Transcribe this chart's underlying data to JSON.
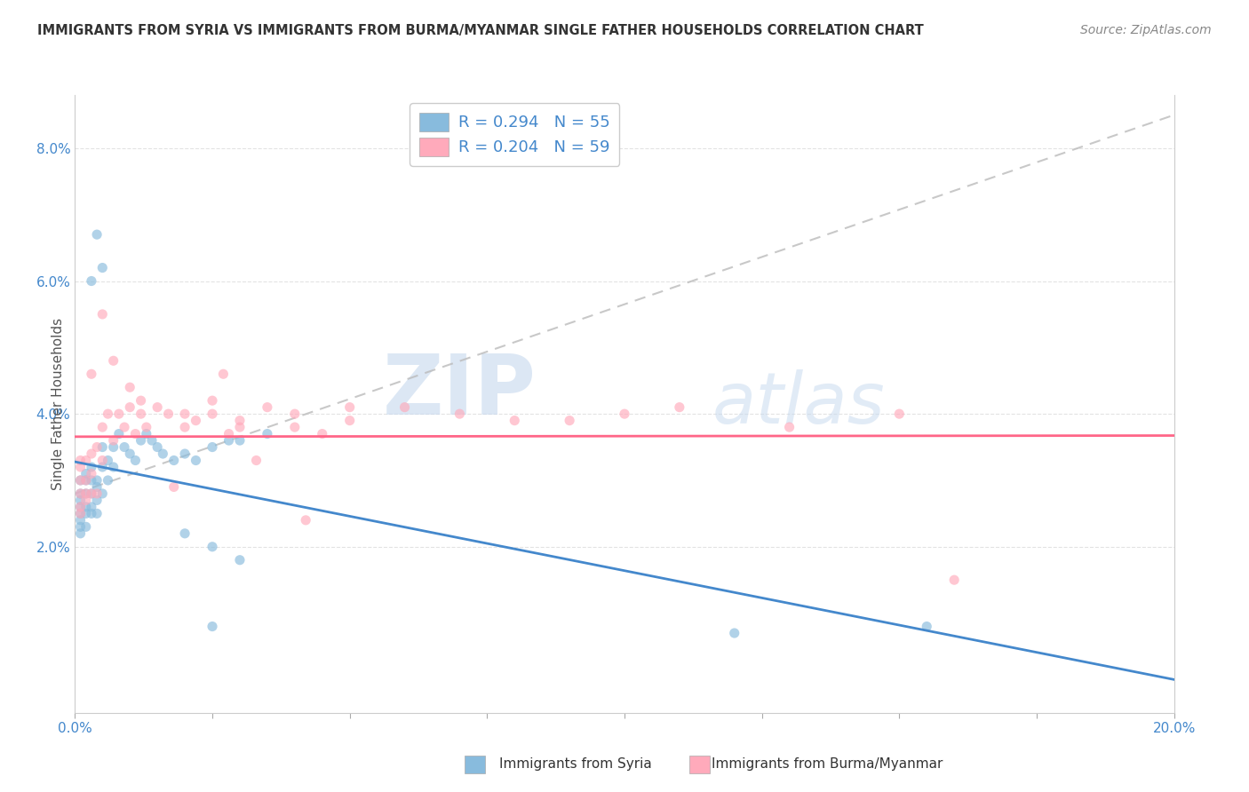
{
  "title": "IMMIGRANTS FROM SYRIA VS IMMIGRANTS FROM BURMA/MYANMAR SINGLE FATHER HOUSEHOLDS CORRELATION CHART",
  "source": "Source: ZipAtlas.com",
  "ylabel": "Single Father Households",
  "legend_syria": "R = 0.294   N = 55",
  "legend_burma": "R = 0.204   N = 59",
  "legend_label_syria": "Immigrants from Syria",
  "legend_label_burma": "Immigrants from Burma/Myanmar",
  "xlim": [
    0,
    0.2
  ],
  "ylim": [
    -0.005,
    0.088
  ],
  "yticks": [
    0.02,
    0.04,
    0.06,
    0.08
  ],
  "ytick_labels": [
    "2.0%",
    "4.0%",
    "6.0%",
    "8.0%"
  ],
  "color_syria": "#88bbdd",
  "color_burma": "#ffaabb",
  "color_syria_line": "#4488cc",
  "color_burma_line": "#ff6688",
  "color_dashed": "#bbbbbb",
  "watermark_zip": "ZIP",
  "watermark_atlas": "atlas",
  "background_color": "#ffffff",
  "grid_color": "#dddddd",
  "syria_x": [
    0.001,
    0.001,
    0.001,
    0.001,
    0.001,
    0.001,
    0.001,
    0.001,
    0.002,
    0.002,
    0.002,
    0.002,
    0.002,
    0.002,
    0.003,
    0.003,
    0.003,
    0.003,
    0.003,
    0.004,
    0.004,
    0.004,
    0.004,
    0.005,
    0.005,
    0.005,
    0.006,
    0.006,
    0.007,
    0.007,
    0.008,
    0.009,
    0.01,
    0.011,
    0.012,
    0.013,
    0.014,
    0.015,
    0.016,
    0.018,
    0.02,
    0.022,
    0.025,
    0.028,
    0.03,
    0.035,
    0.003,
    0.004,
    0.005,
    0.02,
    0.025,
    0.03,
    0.12,
    0.155,
    0.025
  ],
  "syria_y": [
    0.027,
    0.025,
    0.03,
    0.026,
    0.024,
    0.028,
    0.023,
    0.022,
    0.028,
    0.026,
    0.03,
    0.025,
    0.023,
    0.031,
    0.028,
    0.026,
    0.03,
    0.025,
    0.032,
    0.03,
    0.027,
    0.029,
    0.025,
    0.032,
    0.028,
    0.035,
    0.033,
    0.03,
    0.035,
    0.032,
    0.037,
    0.035,
    0.034,
    0.033,
    0.036,
    0.037,
    0.036,
    0.035,
    0.034,
    0.033,
    0.034,
    0.033,
    0.035,
    0.036,
    0.036,
    0.037,
    0.06,
    0.067,
    0.062,
    0.022,
    0.02,
    0.018,
    0.007,
    0.008,
    0.008
  ],
  "burma_x": [
    0.001,
    0.001,
    0.001,
    0.001,
    0.001,
    0.001,
    0.002,
    0.002,
    0.002,
    0.002,
    0.003,
    0.003,
    0.003,
    0.004,
    0.004,
    0.005,
    0.005,
    0.006,
    0.007,
    0.008,
    0.009,
    0.01,
    0.011,
    0.012,
    0.013,
    0.015,
    0.017,
    0.02,
    0.022,
    0.025,
    0.028,
    0.03,
    0.035,
    0.04,
    0.045,
    0.05,
    0.06,
    0.08,
    0.1,
    0.003,
    0.005,
    0.007,
    0.01,
    0.012,
    0.02,
    0.025,
    0.03,
    0.04,
    0.05,
    0.07,
    0.09,
    0.11,
    0.13,
    0.15,
    0.027,
    0.033,
    0.042,
    0.16,
    0.018
  ],
  "burma_y": [
    0.03,
    0.028,
    0.033,
    0.026,
    0.025,
    0.032,
    0.03,
    0.028,
    0.033,
    0.027,
    0.031,
    0.028,
    0.034,
    0.035,
    0.028,
    0.038,
    0.033,
    0.04,
    0.036,
    0.04,
    0.038,
    0.041,
    0.037,
    0.04,
    0.038,
    0.041,
    0.04,
    0.038,
    0.039,
    0.04,
    0.037,
    0.039,
    0.041,
    0.038,
    0.037,
    0.039,
    0.041,
    0.039,
    0.04,
    0.046,
    0.055,
    0.048,
    0.044,
    0.042,
    0.04,
    0.042,
    0.038,
    0.04,
    0.041,
    0.04,
    0.039,
    0.041,
    0.038,
    0.04,
    0.046,
    0.033,
    0.024,
    0.015,
    0.029
  ]
}
